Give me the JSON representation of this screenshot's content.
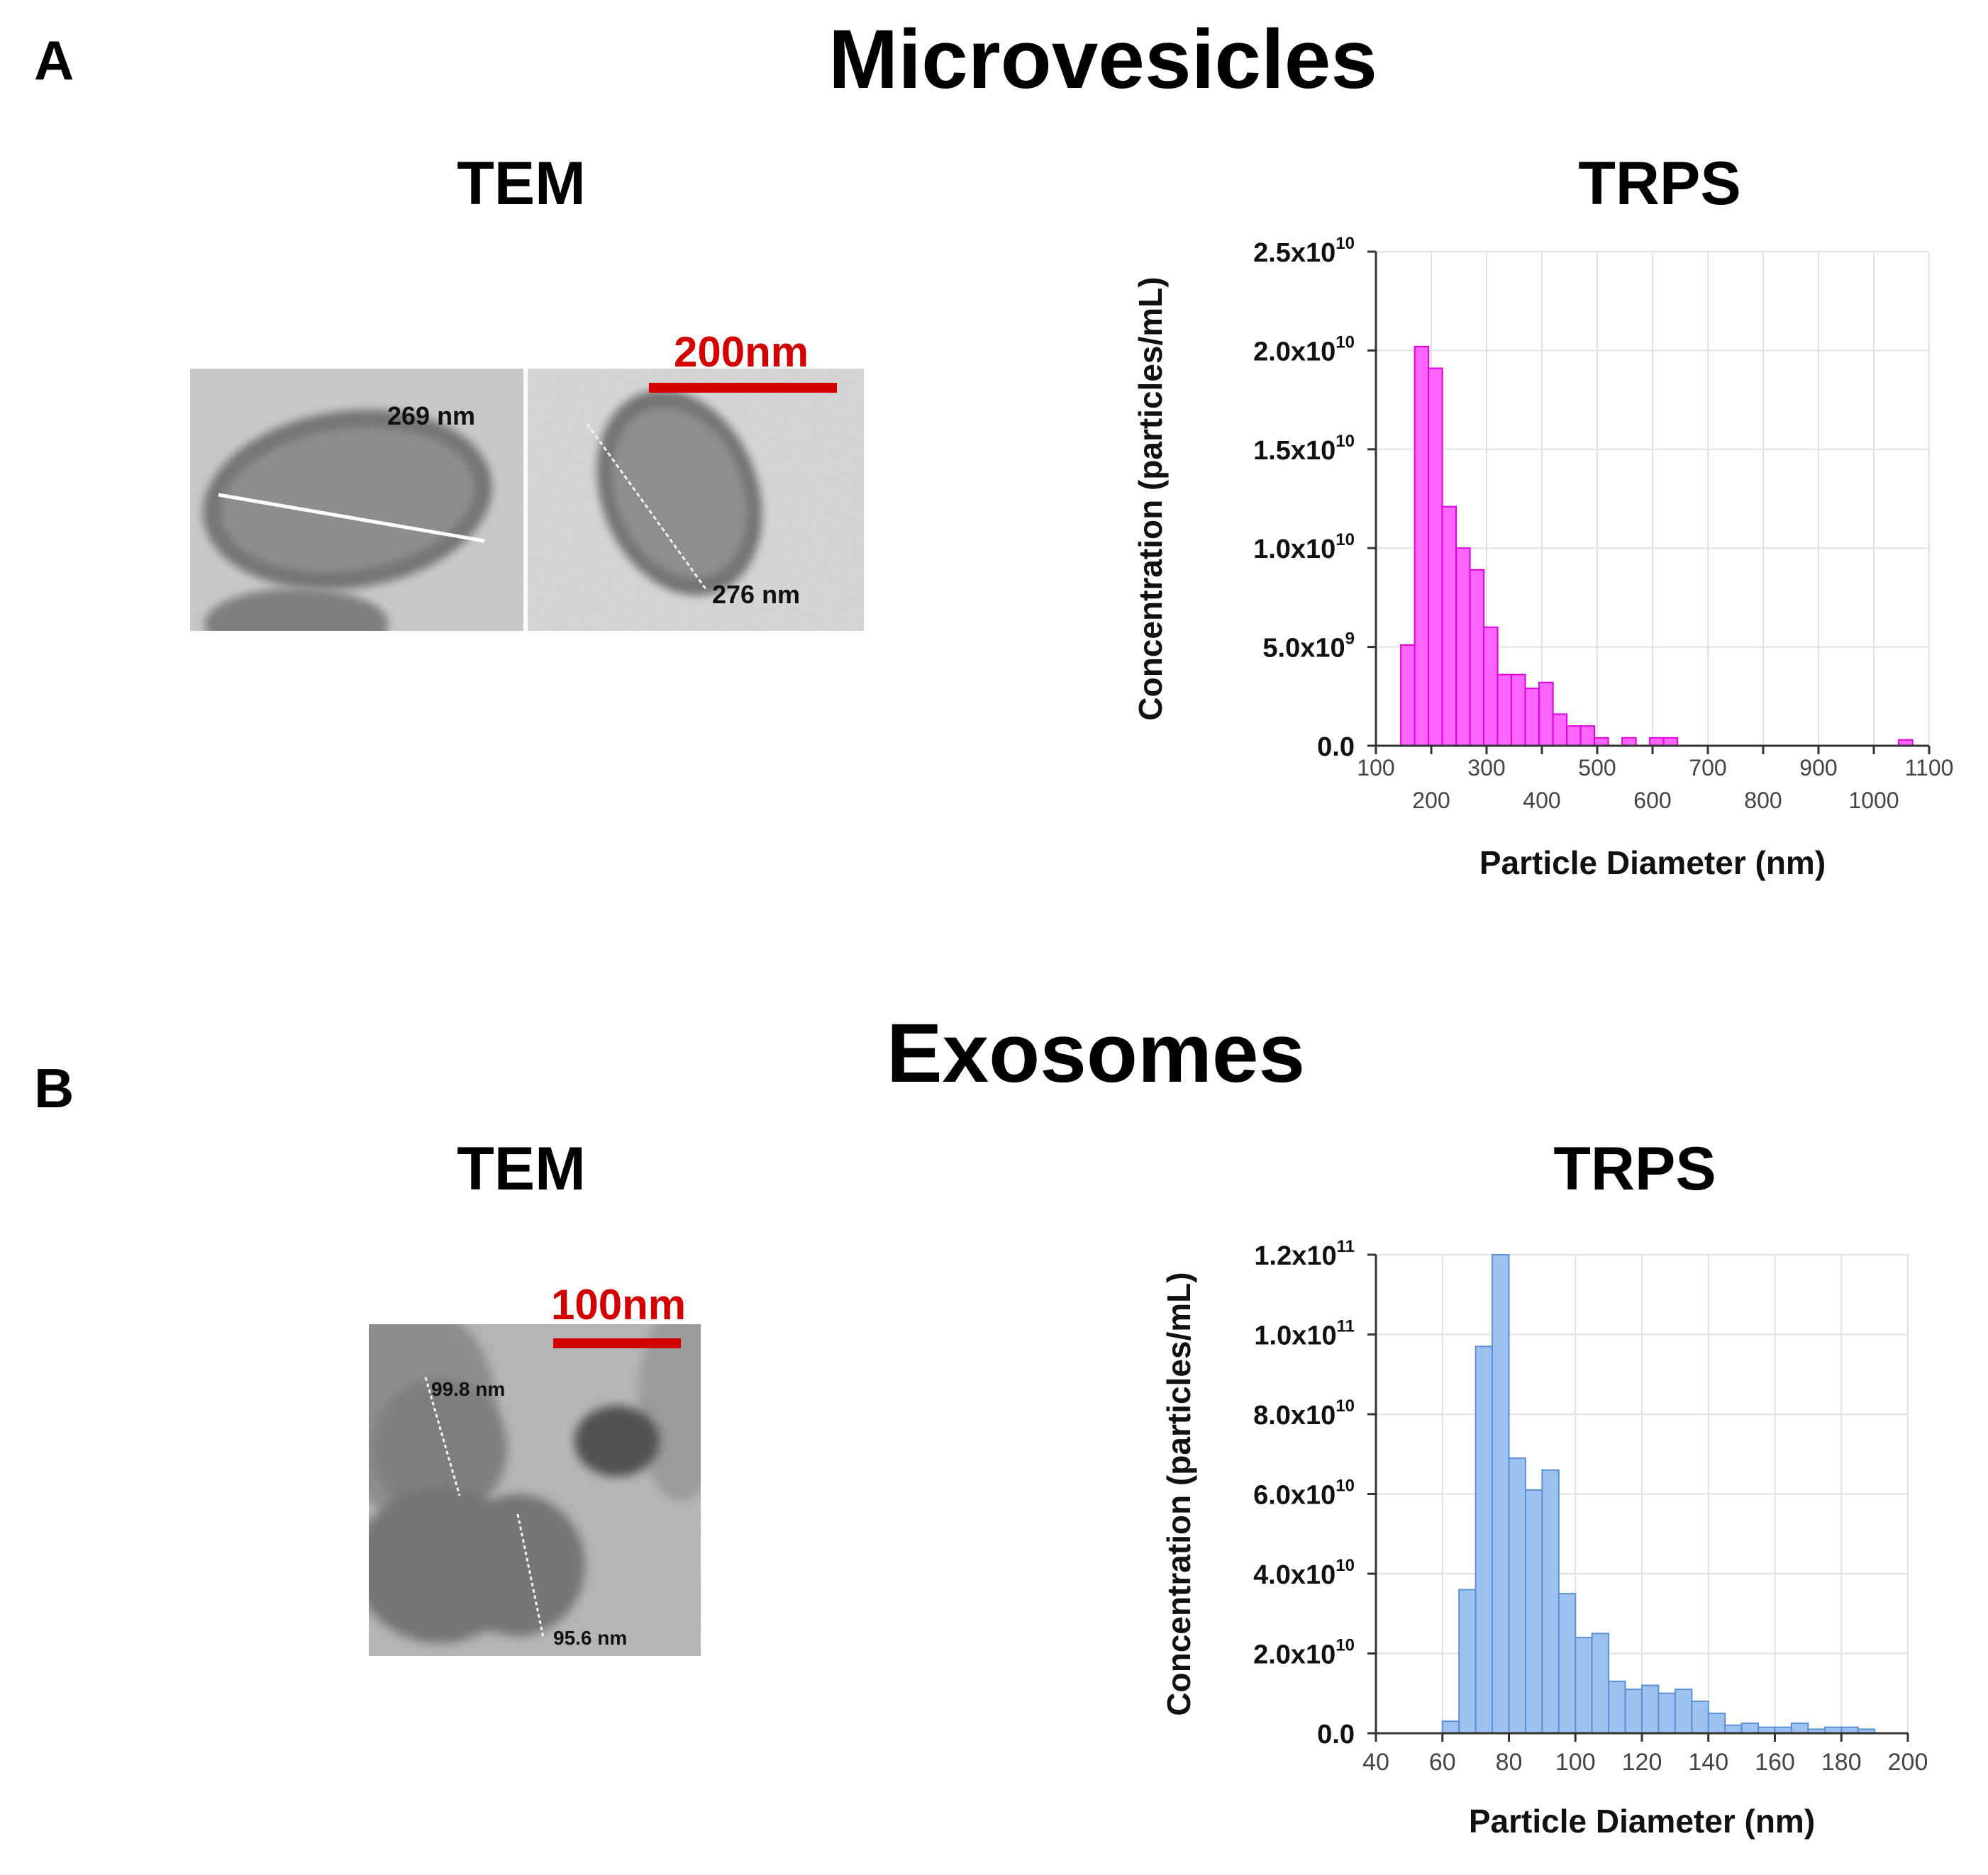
{
  "panels": {
    "a": {
      "letter": "A",
      "title": "Microvesicles",
      "tem": {
        "title": "TEM",
        "scale_label": "200nm",
        "measurements": [
          "269 nm",
          "276 nm"
        ]
      },
      "trps_title": "TRPS"
    },
    "b": {
      "letter": "B",
      "title": "Exosomes",
      "tem": {
        "title": "TEM",
        "scale_label": "100nm",
        "measurements": [
          "99.8 nm",
          "95.6 nm"
        ]
      },
      "trps_title": "TRPS"
    }
  },
  "colors": {
    "bar_a": "#ff66ff",
    "bar_a_edge": "#e000e0",
    "bar_b": "#9ec2f0",
    "bar_b_edge": "#5b8fd6",
    "scale_red": "#d40000"
  },
  "chart_data": [
    {
      "id": "chart-a",
      "type": "bar",
      "title": "TRPS",
      "xlabel": "Particle Diameter (nm)",
      "ylabel": "Concentration (particles/mL)",
      "xlim": [
        100,
        1100
      ],
      "ylim": [
        0,
        25000000000.0
      ],
      "x_ticks": [
        {
          "value": 100,
          "label": "100",
          "row": 0
        },
        {
          "value": 200,
          "label": "200",
          "row": 1
        },
        {
          "value": 300,
          "label": "300",
          "row": 0
        },
        {
          "value": 400,
          "label": "400",
          "row": 1
        },
        {
          "value": 500,
          "label": "500",
          "row": 0
        },
        {
          "value": 600,
          "label": "600",
          "row": 1
        },
        {
          "value": 700,
          "label": "700",
          "row": 0
        },
        {
          "value": 800,
          "label": "800",
          "row": 1
        },
        {
          "value": 900,
          "label": "900",
          "row": 0
        },
        {
          "value": 1000,
          "label": "1000",
          "row": 1
        },
        {
          "value": 1100,
          "label": "1100",
          "row": 0
        }
      ],
      "y_ticks": [
        {
          "value": 0,
          "label": "0.0",
          "exp": ""
        },
        {
          "value": 5000000000.0,
          "label": "5.0x10",
          "exp": "9"
        },
        {
          "value": 10000000000.0,
          "label": "1.0x10",
          "exp": "10"
        },
        {
          "value": 15000000000.0,
          "label": "1.5x10",
          "exp": "10"
        },
        {
          "value": 20000000000.0,
          "label": "2.0x10",
          "exp": "10"
        },
        {
          "value": 25000000000.0,
          "label": "2.5x10",
          "exp": "10"
        }
      ],
      "bin_width": 25,
      "bins": [
        {
          "start": 145,
          "value": 5100000000.0
        },
        {
          "start": 170,
          "value": 20200000000.0
        },
        {
          "start": 195,
          "value": 19100000000.0
        },
        {
          "start": 220,
          "value": 12100000000.0
        },
        {
          "start": 245,
          "value": 10000000000.0
        },
        {
          "start": 270,
          "value": 8900000000.0
        },
        {
          "start": 295,
          "value": 6000000000.0
        },
        {
          "start": 320,
          "value": 3600000000.0
        },
        {
          "start": 345,
          "value": 3600000000.0
        },
        {
          "start": 370,
          "value": 2900000000.0
        },
        {
          "start": 395,
          "value": 3200000000.0
        },
        {
          "start": 420,
          "value": 1600000000.0
        },
        {
          "start": 445,
          "value": 1000000000.0
        },
        {
          "start": 470,
          "value": 1000000000.0
        },
        {
          "start": 495,
          "value": 400000000.0
        },
        {
          "start": 545,
          "value": 400000000.0
        },
        {
          "start": 595,
          "value": 400000000.0
        },
        {
          "start": 620,
          "value": 400000000.0
        },
        {
          "start": 1045,
          "value": 300000000.0
        }
      ]
    },
    {
      "id": "chart-b",
      "type": "bar",
      "title": "TRPS",
      "xlabel": "Particle Diameter (nm)",
      "ylabel": "Concentration (particles/mL)",
      "xlim": [
        40,
        200
      ],
      "ylim": [
        0,
        120000000000.0
      ],
      "x_ticks": [
        {
          "value": 40,
          "label": "40",
          "row": 0
        },
        {
          "value": 60,
          "label": "60",
          "row": 0
        },
        {
          "value": 80,
          "label": "80",
          "row": 0
        },
        {
          "value": 100,
          "label": "100",
          "row": 0
        },
        {
          "value": 120,
          "label": "120",
          "row": 0
        },
        {
          "value": 140,
          "label": "140",
          "row": 0
        },
        {
          "value": 160,
          "label": "160",
          "row": 0
        },
        {
          "value": 180,
          "label": "180",
          "row": 0
        },
        {
          "value": 200,
          "label": "200",
          "row": 0
        }
      ],
      "y_ticks": [
        {
          "value": 0,
          "label": "0.0",
          "exp": ""
        },
        {
          "value": 20000000000.0,
          "label": "2.0x10",
          "exp": "10"
        },
        {
          "value": 40000000000.0,
          "label": "4.0x10",
          "exp": "10"
        },
        {
          "value": 60000000000.0,
          "label": "6.0x10",
          "exp": "10"
        },
        {
          "value": 80000000000.0,
          "label": "8.0x10",
          "exp": "10"
        },
        {
          "value": 100000000000.0,
          "label": "1.0x10",
          "exp": "11"
        },
        {
          "value": 120000000000.0,
          "label": "1.2x10",
          "exp": "11"
        }
      ],
      "bin_width": 5,
      "bins": [
        {
          "start": 60,
          "value": 3000000000.0
        },
        {
          "start": 65,
          "value": 36000000000.0
        },
        {
          "start": 70,
          "value": 97000000000.0
        },
        {
          "start": 75,
          "value": 120000000000.0
        },
        {
          "start": 80,
          "value": 69000000000.0
        },
        {
          "start": 85,
          "value": 61000000000.0
        },
        {
          "start": 90,
          "value": 66000000000.0
        },
        {
          "start": 95,
          "value": 35000000000.0
        },
        {
          "start": 100,
          "value": 24000000000.0
        },
        {
          "start": 105,
          "value": 25000000000.0
        },
        {
          "start": 110,
          "value": 13000000000.0
        },
        {
          "start": 115,
          "value": 11000000000.0
        },
        {
          "start": 120,
          "value": 12000000000.0
        },
        {
          "start": 125,
          "value": 10000000000.0
        },
        {
          "start": 130,
          "value": 11000000000.0
        },
        {
          "start": 135,
          "value": 8000000000.0
        },
        {
          "start": 140,
          "value": 5000000000.0
        },
        {
          "start": 145,
          "value": 2000000000.0
        },
        {
          "start": 150,
          "value": 2500000000.0
        },
        {
          "start": 155,
          "value": 1500000000.0
        },
        {
          "start": 160,
          "value": 1500000000.0
        },
        {
          "start": 165,
          "value": 2500000000.0
        },
        {
          "start": 170,
          "value": 1000000000.0
        },
        {
          "start": 175,
          "value": 1500000000.0
        },
        {
          "start": 180,
          "value": 1500000000.0
        },
        {
          "start": 185,
          "value": 1000000000.0
        }
      ]
    }
  ]
}
